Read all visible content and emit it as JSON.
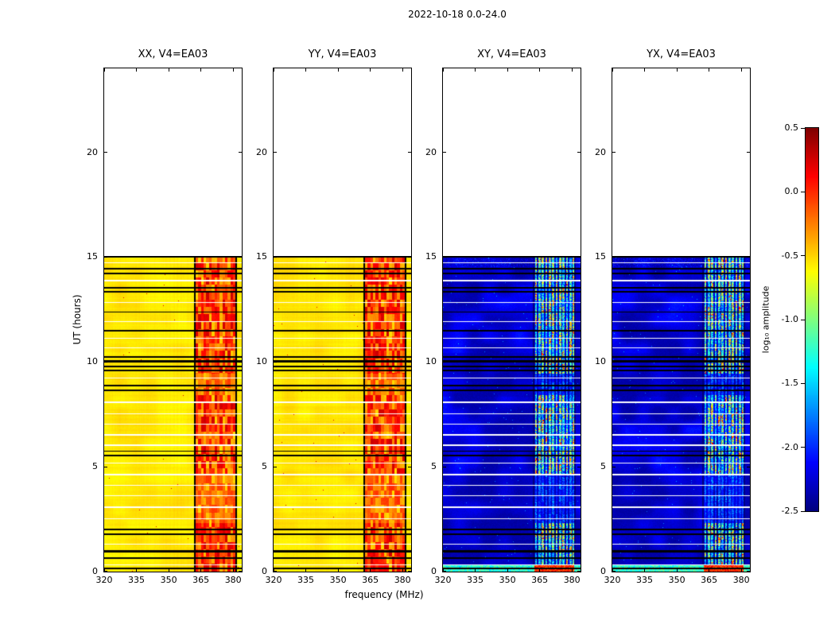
{
  "chart_data": {
    "type": "heatmap",
    "title": "2022-10-18 0.0-24.0",
    "xlabel": "frequency (MHz)",
    "ylabel": "UT (hours)",
    "colormap": "jet",
    "x_range_mhz": [
      320,
      384
    ],
    "y_range_hours": [
      0,
      24
    ],
    "data_time_extent_hours": [
      0,
      15
    ],
    "x_tick_values": [
      320,
      335,
      350,
      365,
      380
    ],
    "x_tick_labels": [
      "320",
      "335",
      "350",
      "365",
      "380"
    ],
    "y_tick_values": [
      0,
      5,
      10,
      15,
      20
    ],
    "y_tick_labels": [
      "0",
      "5",
      "10",
      "15",
      "20"
    ],
    "panels": [
      {
        "title": "XX, V4=EA03",
        "pol": "XX",
        "kind": "autocorrelation",
        "base_log_amp": -0.56
      },
      {
        "title": "YY, V4=EA03",
        "pol": "YY",
        "kind": "autocorrelation",
        "base_log_amp": -0.55
      },
      {
        "title": "XY, V4=EA03",
        "pol": "XY",
        "kind": "cross",
        "base_log_amp": -2.33
      },
      {
        "title": "YX, V4=EA03",
        "pol": "YX",
        "kind": "cross",
        "base_log_amp": -2.33
      }
    ],
    "rfi_band_mhz": [
      362.5,
      381.0
    ],
    "flagged_edge_channels_mhz": [
      [
        361.7,
        362.5
      ],
      [
        381.0,
        381.8
      ]
    ],
    "rfi_channels_mhz": [
      363.3,
      364.9,
      366.5,
      368.1,
      369.7,
      371.3,
      372.9,
      374.5,
      376.1,
      377.7,
      379.3,
      380.6
    ],
    "rfi_strong_time_ranges_hours": [
      [
        0.0,
        2.3
      ],
      [
        4.6,
        8.4
      ],
      [
        9.4,
        14.95
      ]
    ],
    "flagged_black_rows_hours": [
      [
        0.12,
        0.08
      ],
      [
        0.62,
        0.1
      ],
      [
        0.95,
        0.1
      ],
      [
        1.75,
        0.08
      ],
      [
        2.0,
        0.08
      ],
      [
        5.5,
        0.07
      ],
      [
        5.72,
        0.07
      ],
      [
        8.62,
        0.09
      ],
      [
        8.85,
        0.09
      ],
      [
        9.55,
        0.07
      ],
      [
        9.75,
        0.07
      ],
      [
        10.0,
        0.08
      ],
      [
        10.2,
        0.08
      ],
      [
        11.45,
        0.07
      ],
      [
        12.35,
        0.07
      ],
      [
        13.3,
        0.08
      ],
      [
        13.5,
        0.08
      ],
      [
        14.2,
        0.08
      ],
      [
        14.4,
        0.08
      ],
      [
        14.97,
        0.06
      ]
    ],
    "gap_white_rows_hours": [
      [
        0.3,
        0.06
      ],
      [
        1.3,
        0.05
      ],
      [
        2.5,
        0.06
      ],
      [
        3.05,
        0.05
      ],
      [
        3.6,
        0.06
      ],
      [
        4.1,
        0.05
      ],
      [
        4.6,
        0.06
      ],
      [
        5.15,
        0.05
      ],
      [
        6.0,
        0.06
      ],
      [
        6.5,
        0.05
      ],
      [
        7.0,
        0.06
      ],
      [
        7.5,
        0.05
      ],
      [
        8.05,
        0.06
      ],
      [
        9.2,
        0.05
      ],
      [
        10.65,
        0.06
      ],
      [
        11.1,
        0.05
      ],
      [
        11.9,
        0.06
      ],
      [
        12.8,
        0.06
      ],
      [
        13.85,
        0.06
      ],
      [
        14.7,
        0.06
      ]
    ],
    "colorbar": {
      "label": "log₁₀ amplitude",
      "min": -2.5,
      "max": 0.5,
      "tick_values": [
        0.5,
        0.0,
        -0.5,
        -1.0,
        -1.5,
        -2.0,
        -2.5
      ],
      "tick_labels": [
        "0.5",
        "0.0",
        "-0.5",
        "-1.0",
        "-1.5",
        "-2.0",
        "-2.5"
      ]
    }
  }
}
